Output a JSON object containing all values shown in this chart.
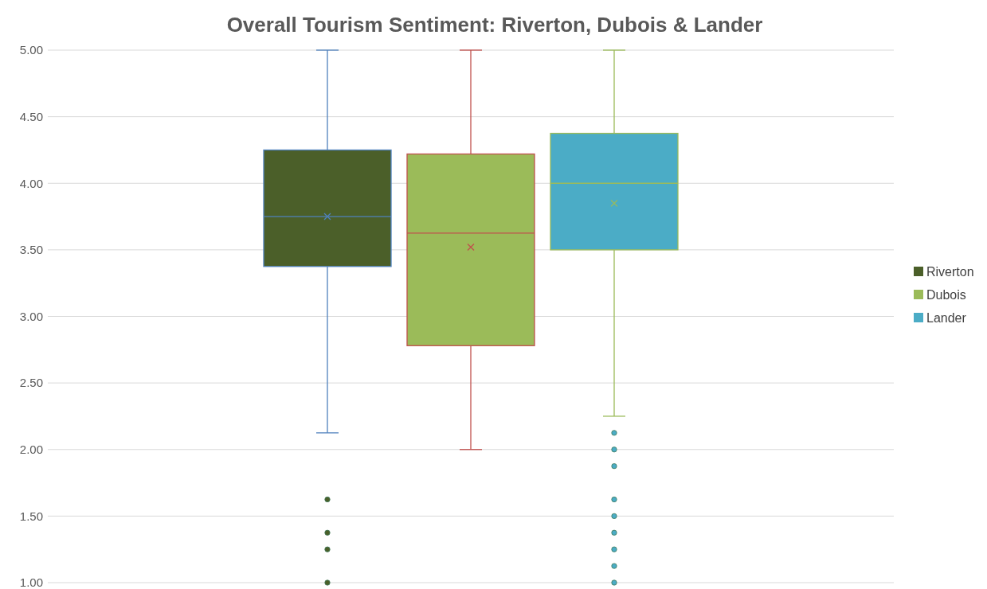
{
  "chart_data": {
    "type": "box",
    "title": "Overall Tourism Sentiment: Riverton, Dubois & Lander",
    "categories": [
      null
    ],
    "series": [
      {
        "name": "Riverton",
        "color": "#4b5f29",
        "boxes": [
          {
            "low": 2.125,
            "q1": 3.375,
            "median": 3.75,
            "q3": 4.25,
            "high": 5,
            "mean": 3.75,
            "outliers": [
              1.625,
              1.375,
              1.25,
              1
            ]
          }
        ]
      },
      {
        "name": "Dubois",
        "color": "#9bbb59",
        "boxes": [
          {
            "low": 2,
            "q1": 2.78,
            "median": 3.625,
            "q3": 4.22,
            "high": 5,
            "mean": 3.52
          }
        ]
      },
      {
        "name": "Lander",
        "color": "#4bacc6",
        "boxes": [
          {
            "low": 2.25,
            "q1": 3.5,
            "median": 4,
            "q3": 4.375,
            "high": 5,
            "mean": 3.85,
            "outliers": [
              2.125,
              2,
              1.875,
              1.625,
              1.5,
              1.375,
              1.25,
              1.125,
              1
            ]
          }
        ]
      }
    ],
    "ylim": [
      1,
      5
    ],
    "yticks": [
      {
        "value": 1,
        "label": "1.00"
      },
      {
        "value": 1.5,
        "label": "1.50"
      },
      {
        "value": 2,
        "label": "2.00"
      },
      {
        "value": 2.5,
        "label": "2.50"
      },
      {
        "value": 3,
        "label": "3.00"
      },
      {
        "value": 3.5,
        "label": "3.50"
      },
      {
        "value": 4,
        "label": "4.00"
      },
      {
        "value": 4.5,
        "label": "4.50"
      },
      {
        "value": 5,
        "label": "5.00"
      }
    ],
    "grid": "y",
    "legend": "right"
  }
}
